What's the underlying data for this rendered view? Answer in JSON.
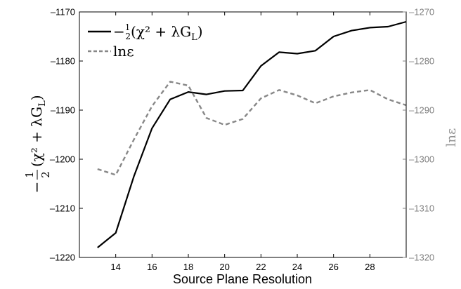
{
  "chart_data": {
    "type": "line",
    "xlabel": "Source Plane Resolution",
    "x": [
      13,
      14,
      15,
      16,
      17,
      18,
      19,
      20,
      21,
      22,
      23,
      24,
      25,
      26,
      27,
      28,
      29,
      30
    ],
    "xticks": [
      14,
      16,
      18,
      20,
      22,
      24,
      26,
      28
    ],
    "xlim": [
      12,
      30
    ],
    "grid": false,
    "legend_position": "top-left",
    "series": [
      {
        "name": "-½(χ² + λG_L)",
        "axis": "left",
        "color": "#000000",
        "dash": "solid",
        "values": [
          -1218,
          -1215,
          -1203.5,
          -1193.7,
          -1187.8,
          -1186.3,
          -1186.8,
          -1186.1,
          -1186.0,
          -1181.0,
          -1178.2,
          -1178.5,
          -1177.9,
          -1175.0,
          -1173.8,
          -1173.2,
          -1173.0,
          -1172.0
        ]
      },
      {
        "name": "lnε",
        "axis": "right",
        "color": "#888888",
        "dash": "dashed",
        "values": [
          -1302.0,
          -1303.2,
          -1296.0,
          -1289.2,
          -1284.2,
          -1285.0,
          -1291.6,
          -1293.0,
          -1291.8,
          -1287.6,
          -1285.9,
          -1287.0,
          -1288.6,
          -1287.2,
          -1286.4,
          -1285.9,
          -1287.8,
          -1289.0
        ]
      }
    ],
    "y_left": {
      "label_frac_num": "1",
      "label_frac_den": "2",
      "label_sign": "−",
      "label_expr": "(χ² + λG",
      "label_sub": "L",
      "label_close": ")",
      "ylim": [
        -1220,
        -1170
      ],
      "ticks": [
        -1220,
        -1210,
        -1200,
        -1190,
        -1180,
        -1170
      ],
      "tick_labels": [
        "–1220",
        "–1210",
        "–1200",
        "–1190",
        "–1180",
        "–1170"
      ]
    },
    "y_right": {
      "label": "lnε",
      "ylim": [
        -1320,
        -1270
      ],
      "ticks": [
        -1320,
        -1310,
        -1300,
        -1290,
        -1280,
        -1270
      ],
      "tick_labels": [
        "–1320",
        "–1310",
        "–1300",
        "–1290",
        "–1280",
        "–1270"
      ]
    }
  }
}
